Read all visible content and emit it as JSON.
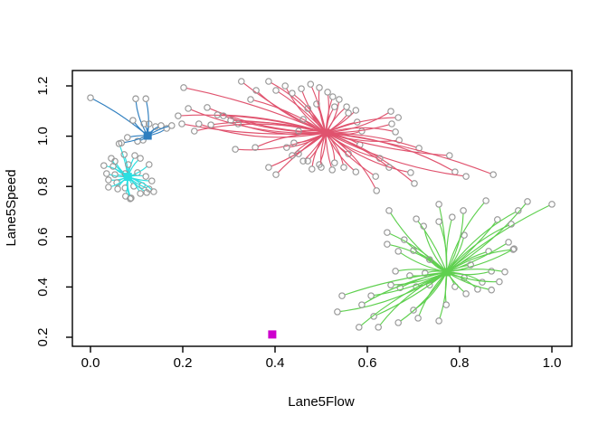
{
  "chart_data": {
    "type": "scatter",
    "variant": "cluster-neighborhood-plot",
    "title": "",
    "xlabel": "Lane5Flow",
    "ylabel": "Lane5Speed",
    "xlim": [
      -0.04,
      1.04
    ],
    "ylim": [
      0.16,
      1.26
    ],
    "x_ticks": [
      0.0,
      0.2,
      0.4,
      0.6,
      0.8,
      1.0
    ],
    "x_tick_labels": [
      "0.0",
      "0.2",
      "0.4",
      "0.6",
      "0.8",
      "1.0"
    ],
    "y_ticks": [
      0.2,
      0.4,
      0.6,
      0.8,
      1.0,
      1.2
    ],
    "y_tick_labels": [
      "0.2",
      "0.4",
      "0.6",
      "0.8",
      "1.0",
      "1.2"
    ],
    "grid": false,
    "legend": "none",
    "point_marker": "open-circle",
    "marker_stroke_color": "#979797",
    "frame_color": "#000000",
    "clusters": [
      {
        "name": "cyan",
        "color": "#2bdfe1",
        "centroid": [
          0.081,
          0.838
        ],
        "centroid_marker": "filled-square",
        "points": [
          [
            0.062,
            0.97
          ],
          [
            0.045,
            0.912
          ],
          [
            0.073,
            0.927
          ],
          [
            0.096,
            0.923
          ],
          [
            0.029,
            0.883
          ],
          [
            0.049,
            0.88
          ],
          [
            0.082,
            0.887
          ],
          [
            0.108,
            0.912
          ],
          [
            0.127,
            0.887
          ],
          [
            0.035,
            0.851
          ],
          [
            0.053,
            0.847
          ],
          [
            0.039,
            0.826
          ],
          [
            0.057,
            0.815
          ],
          [
            0.075,
            0.851
          ],
          [
            0.102,
            0.855
          ],
          [
            0.12,
            0.84
          ],
          [
            0.133,
            0.822
          ],
          [
            0.039,
            0.797
          ],
          [
            0.059,
            0.79
          ],
          [
            0.075,
            0.794
          ],
          [
            0.094,
            0.801
          ],
          [
            0.112,
            0.804
          ],
          [
            0.127,
            0.79
          ],
          [
            0.076,
            0.761
          ],
          [
            0.088,
            0.754
          ],
          [
            0.108,
            0.772
          ],
          [
            0.122,
            0.776
          ],
          [
            0.137,
            0.779
          ],
          [
            0.086,
            0.751
          ],
          [
            0.053,
            0.9
          ]
        ]
      },
      {
        "name": "blue",
        "color": "#2e7ebf",
        "centroid": [
          0.124,
          1.002
        ],
        "centroid_marker": "filled-square",
        "points": [
          [
            0.0,
            1.153
          ],
          [
            0.098,
            1.149
          ],
          [
            0.12,
            1.149
          ],
          [
            0.092,
            1.063
          ],
          [
            0.116,
            1.049
          ],
          [
            0.127,
            1.049
          ],
          [
            0.141,
            1.038
          ],
          [
            0.153,
            1.042
          ],
          [
            0.165,
            1.031
          ],
          [
            0.176,
            1.042
          ],
          [
            0.08,
            0.995
          ],
          [
            0.102,
            0.98
          ],
          [
            0.114,
            0.984
          ],
          [
            0.067,
            0.973
          ]
        ]
      },
      {
        "name": "red",
        "color": "#e0536e",
        "centroid": [
          0.51,
          1.013
        ],
        "centroid_marker": "filled-square",
        "points": [
          [
            0.202,
            1.193
          ],
          [
            0.212,
            1.11
          ],
          [
            0.19,
            1.081
          ],
          [
            0.198,
            1.049
          ],
          [
            0.225,
            1.02
          ],
          [
            0.253,
            1.114
          ],
          [
            0.275,
            1.085
          ],
          [
            0.235,
            1.049
          ],
          [
            0.261,
            1.045
          ],
          [
            0.288,
            1.081
          ],
          [
            0.304,
            1.063
          ],
          [
            0.32,
            1.049
          ],
          [
            0.347,
            1.146
          ],
          [
            0.327,
            1.218
          ],
          [
            0.386,
            1.218
          ],
          [
            0.359,
            1.182
          ],
          [
            0.402,
            1.182
          ],
          [
            0.422,
            1.2
          ],
          [
            0.437,
            1.171
          ],
          [
            0.457,
            1.189
          ],
          [
            0.477,
            1.207
          ],
          [
            0.496,
            1.193
          ],
          [
            0.514,
            1.175
          ],
          [
            0.525,
            1.157
          ],
          [
            0.539,
            1.146
          ],
          [
            0.555,
            1.117
          ],
          [
            0.575,
            1.103
          ],
          [
            0.314,
            0.948
          ],
          [
            0.357,
            0.955
          ],
          [
            0.386,
            0.876
          ],
          [
            0.402,
            0.847
          ],
          [
            0.425,
            0.955
          ],
          [
            0.437,
            0.923
          ],
          [
            0.461,
            0.901
          ],
          [
            0.48,
            0.869
          ],
          [
            0.496,
            0.887
          ],
          [
            0.524,
            0.866
          ],
          [
            0.549,
            0.876
          ],
          [
            0.575,
            0.858
          ],
          [
            0.471,
            1.11
          ],
          [
            0.49,
            1.128
          ],
          [
            0.529,
            1.117
          ],
          [
            0.559,
            1.092
          ],
          [
            0.578,
            1.056
          ],
          [
            0.588,
            1.02
          ],
          [
            0.584,
            0.966
          ],
          [
            0.559,
            0.93
          ],
          [
            0.529,
            0.894
          ],
          [
            0.5,
            0.876
          ],
          [
            0.471,
            0.901
          ],
          [
            0.451,
            0.93
          ],
          [
            0.441,
            0.973
          ],
          [
            0.451,
            1.02
          ],
          [
            0.461,
            1.067
          ],
          [
            0.651,
            1.099
          ],
          [
            0.667,
            1.074
          ],
          [
            0.653,
            1.049
          ],
          [
            0.661,
            1.017
          ],
          [
            0.669,
            0.984
          ],
          [
            0.712,
            0.952
          ],
          [
            0.778,
            0.923
          ],
          [
            0.79,
            0.858
          ],
          [
            0.814,
            0.84
          ],
          [
            0.873,
            0.847
          ],
          [
            0.694,
            0.855
          ],
          [
            0.702,
            0.812
          ],
          [
            0.618,
            0.84
          ],
          [
            0.62,
            0.783
          ],
          [
            0.627,
            0.912
          ],
          [
            0.647,
            0.876
          ]
        ]
      },
      {
        "name": "green",
        "color": "#5fd04f",
        "centroid": [
          0.772,
          0.459
        ],
        "centroid_marker": "filled-square",
        "points": [
          [
            0.755,
            0.729
          ],
          [
            0.857,
            0.743
          ],
          [
            0.947,
            0.74
          ],
          [
            1.0,
            0.729
          ],
          [
            0.808,
            0.704
          ],
          [
            0.647,
            0.704
          ],
          [
            0.706,
            0.671
          ],
          [
            0.722,
            0.642
          ],
          [
            0.755,
            0.66
          ],
          [
            0.784,
            0.678
          ],
          [
            0.882,
            0.668
          ],
          [
            0.912,
            0.65
          ],
          [
            0.643,
            0.617
          ],
          [
            0.68,
            0.588
          ],
          [
            0.643,
            0.57
          ],
          [
            0.667,
            0.542
          ],
          [
            0.7,
            0.545
          ],
          [
            0.735,
            0.509
          ],
          [
            0.81,
            0.606
          ],
          [
            0.863,
            0.542
          ],
          [
            0.906,
            0.578
          ],
          [
            0.916,
            0.549
          ],
          [
            0.918,
            0.552
          ],
          [
            0.824,
            0.488
          ],
          [
            0.869,
            0.463
          ],
          [
            0.898,
            0.46
          ],
          [
            0.81,
            0.437
          ],
          [
            0.849,
            0.419
          ],
          [
            0.886,
            0.421
          ],
          [
            0.79,
            0.401
          ],
          [
            0.814,
            0.373
          ],
          [
            0.839,
            0.391
          ],
          [
            0.661,
            0.463
          ],
          [
            0.692,
            0.445
          ],
          [
            0.725,
            0.455
          ],
          [
            0.651,
            0.408
          ],
          [
            0.671,
            0.397
          ],
          [
            0.706,
            0.401
          ],
          [
            0.735,
            0.408
          ],
          [
            0.608,
            0.365
          ],
          [
            0.545,
            0.365
          ],
          [
            0.535,
            0.301
          ],
          [
            0.588,
            0.329
          ],
          [
            0.614,
            0.283
          ],
          [
            0.624,
            0.24
          ],
          [
            0.667,
            0.258
          ],
          [
            0.582,
            0.24
          ],
          [
            0.7,
            0.308
          ],
          [
            0.71,
            0.276
          ],
          [
            0.755,
            0.265
          ],
          [
            0.771,
            0.329
          ],
          [
            0.927,
            0.704
          ],
          [
            0.869,
            0.388
          ]
        ]
      },
      {
        "name": "magenta",
        "color": "#cd00cd",
        "centroid": [
          0.394,
          0.211
        ],
        "centroid_marker": "filled-square",
        "points": []
      }
    ]
  }
}
